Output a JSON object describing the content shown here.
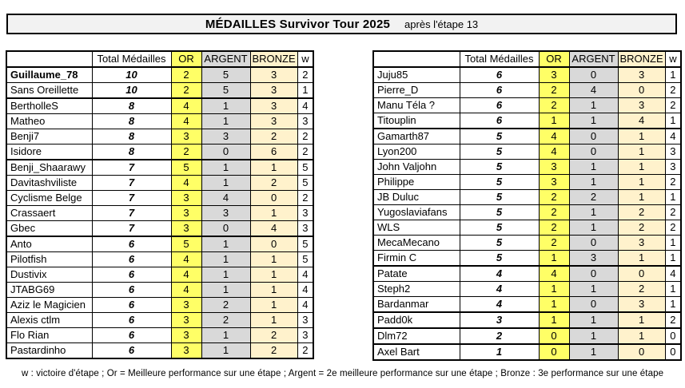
{
  "title": {
    "main": "MÉDAILLES Survivor Tour 2025",
    "subtitle": "après l'étape 13"
  },
  "columns": {
    "player": "",
    "total": "Total Médailles",
    "or": "OR",
    "argent": "ARGENT",
    "bronze": "BRONZE",
    "w": "w"
  },
  "colors": {
    "or": "#FFFF66",
    "argent": "#D9D9D9",
    "bronze": "#FFF2CC",
    "title_bg": "#F2F2F2"
  },
  "tables": [
    {
      "rows": [
        {
          "name": "Guillaume_78",
          "total": 10,
          "or": 2,
          "argent": 5,
          "bronze": 3,
          "w": 2,
          "bold": true
        },
        {
          "name": "Sans Oreillette",
          "total": 10,
          "or": 2,
          "argent": 5,
          "bronze": 3,
          "w": 1
        },
        {
          "name": "BertholleS",
          "total": 8,
          "or": 4,
          "argent": 1,
          "bronze": 3,
          "w": 4
        },
        {
          "name": "Matheo",
          "total": 8,
          "or": 4,
          "argent": 1,
          "bronze": 3,
          "w": 3
        },
        {
          "name": "Benji7",
          "total": 8,
          "or": 3,
          "argent": 3,
          "bronze": 2,
          "w": 2
        },
        {
          "name": "Isidore",
          "total": 8,
          "or": 2,
          "argent": 0,
          "bronze": 6,
          "w": 2
        },
        {
          "name": "Benji_Shaarawy",
          "total": 7,
          "or": 5,
          "argent": 1,
          "bronze": 1,
          "w": 5
        },
        {
          "name": "Davitashviliste",
          "total": 7,
          "or": 4,
          "argent": 1,
          "bronze": 2,
          "w": 5
        },
        {
          "name": "Cyclisme Belge",
          "total": 7,
          "or": 3,
          "argent": 4,
          "bronze": 0,
          "w": 2
        },
        {
          "name": "Crassaert",
          "total": 7,
          "or": 3,
          "argent": 3,
          "bronze": 1,
          "w": 3
        },
        {
          "name": "Gbec",
          "total": 7,
          "or": 3,
          "argent": 0,
          "bronze": 4,
          "w": 3
        },
        {
          "name": "Anto",
          "total": 6,
          "or": 5,
          "argent": 1,
          "bronze": 0,
          "w": 5
        },
        {
          "name": "Pilotfish",
          "total": 6,
          "or": 4,
          "argent": 1,
          "bronze": 1,
          "w": 5
        },
        {
          "name": "Dustivix",
          "total": 6,
          "or": 4,
          "argent": 1,
          "bronze": 1,
          "w": 4
        },
        {
          "name": "JTABG69",
          "total": 6,
          "or": 4,
          "argent": 1,
          "bronze": 1,
          "w": 4
        },
        {
          "name": "Aziz le Magicien",
          "total": 6,
          "or": 3,
          "argent": 2,
          "bronze": 1,
          "w": 4
        },
        {
          "name": "Alexis ctlm",
          "total": 6,
          "or": 3,
          "argent": 2,
          "bronze": 1,
          "w": 3
        },
        {
          "name": "Flo Rian",
          "total": 6,
          "or": 3,
          "argent": 1,
          "bronze": 2,
          "w": 3
        },
        {
          "name": "Pastardinho",
          "total": 6,
          "or": 3,
          "argent": 1,
          "bronze": 2,
          "w": 2
        }
      ]
    },
    {
      "rows": [
        {
          "name": "Juju85",
          "total": 6,
          "or": 3,
          "argent": 0,
          "bronze": 3,
          "w": 1
        },
        {
          "name": "Pierre_D",
          "total": 6,
          "or": 2,
          "argent": 4,
          "bronze": 0,
          "w": 2
        },
        {
          "name": "Manu Téla ?",
          "total": 6,
          "or": 2,
          "argent": 1,
          "bronze": 3,
          "w": 2
        },
        {
          "name": "Titouplin",
          "total": 6,
          "or": 1,
          "argent": 1,
          "bronze": 4,
          "w": 1
        },
        {
          "name": "Gamarth87",
          "total": 5,
          "or": 4,
          "argent": 0,
          "bronze": 1,
          "w": 4
        },
        {
          "name": "Lyon200",
          "total": 5,
          "or": 4,
          "argent": 0,
          "bronze": 1,
          "w": 3
        },
        {
          "name": "John Valjohn",
          "total": 5,
          "or": 3,
          "argent": 1,
          "bronze": 1,
          "w": 3
        },
        {
          "name": "Philippe",
          "total": 5,
          "or": 3,
          "argent": 1,
          "bronze": 1,
          "w": 2
        },
        {
          "name": "JB Duluc",
          "total": 5,
          "or": 2,
          "argent": 2,
          "bronze": 1,
          "w": 1
        },
        {
          "name": "Yugoslaviafans",
          "total": 5,
          "or": 2,
          "argent": 1,
          "bronze": 2,
          "w": 2
        },
        {
          "name": "WLS",
          "total": 5,
          "or": 2,
          "argent": 1,
          "bronze": 2,
          "w": 2
        },
        {
          "name": "MecaMecano",
          "total": 5,
          "or": 2,
          "argent": 0,
          "bronze": 3,
          "w": 1
        },
        {
          "name": "Firmin C",
          "total": 5,
          "or": 1,
          "argent": 3,
          "bronze": 1,
          "w": 1
        },
        {
          "name": "Patate",
          "total": 4,
          "or": 4,
          "argent": 0,
          "bronze": 0,
          "w": 4
        },
        {
          "name": "Steph2",
          "total": 4,
          "or": 1,
          "argent": 1,
          "bronze": 2,
          "w": 1
        },
        {
          "name": "Bardanmar",
          "total": 4,
          "or": 1,
          "argent": 0,
          "bronze": 3,
          "w": 1
        },
        {
          "name": "Padd0k",
          "total": 3,
          "or": 1,
          "argent": 1,
          "bronze": 1,
          "w": 2
        },
        {
          "name": "Dlm72",
          "total": 2,
          "or": 0,
          "argent": 1,
          "bronze": 1,
          "w": 0
        },
        {
          "name": "Axel Bart",
          "total": 1,
          "or": 0,
          "argent": 1,
          "bronze": 0,
          "w": 0
        }
      ]
    }
  ],
  "footer": "w : victoire d'étape ; Or = Meilleure performance sur une étape ; Argent = 2e meilleure performance sur une étape ;  Bronze : 3e performance sur une étape"
}
